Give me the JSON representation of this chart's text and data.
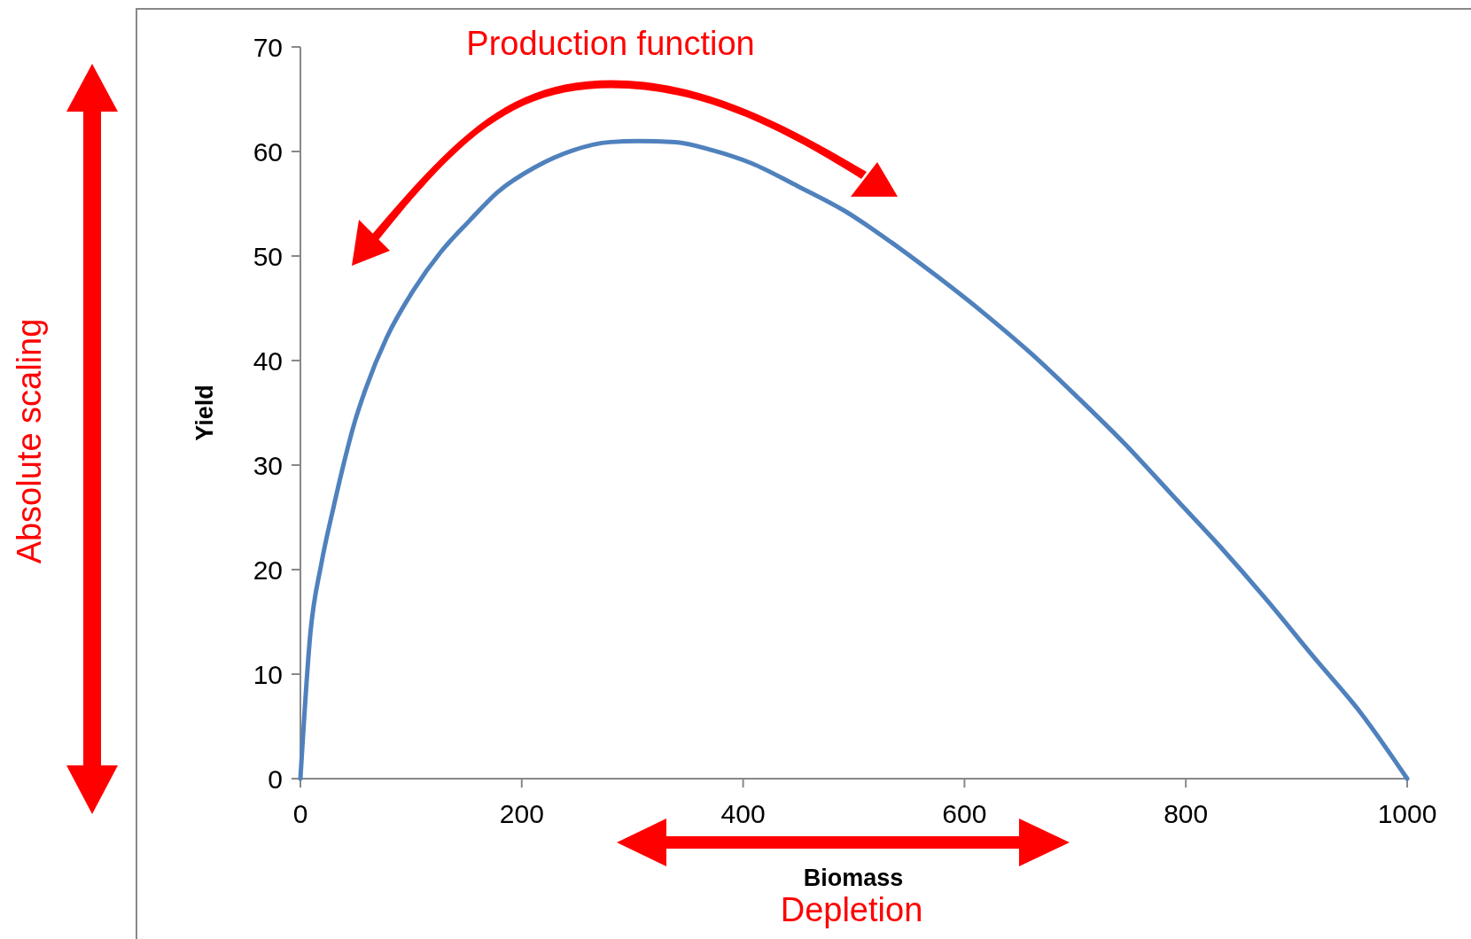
{
  "chart_data": {
    "type": "line",
    "xlabel": "Biomass",
    "ylabel": "Yield",
    "annotations": [
      "Production function",
      "Absolute scaling",
      "Depletion"
    ],
    "xlim": [
      0,
      1000
    ],
    "ylim": [
      0,
      70
    ],
    "xticks": [
      0,
      200,
      400,
      600,
      800,
      1000
    ],
    "yticks": [
      0,
      10,
      20,
      30,
      40,
      50,
      60,
      70
    ],
    "grid": false,
    "marker": "none",
    "line_style": "solid",
    "series": [
      {
        "color": "#4f81bd",
        "x": [
          0,
          9,
          19,
          30,
          40,
          49,
          59,
          78,
          102,
          127,
          153,
          178,
          212,
          246,
          280,
          305,
          339,
          373,
          407,
          449,
          492,
          534,
          576,
          619,
          661,
          703,
          746,
          788,
          831,
          873,
          915,
          958,
          1000
        ],
        "values": [
          0,
          13.9,
          20.6,
          26,
          30.5,
          34.1,
          37.3,
          42.2,
          46.7,
          50.4,
          53.4,
          56.1,
          58.5,
          60.1,
          60.9,
          61,
          60.9,
          60.1,
          58.9,
          56.7,
          54.3,
          51.3,
          48,
          44.4,
          40.6,
          36.4,
          31.9,
          27.1,
          22.2,
          17.1,
          11.7,
          6.3,
          0
        ]
      }
    ]
  }
}
